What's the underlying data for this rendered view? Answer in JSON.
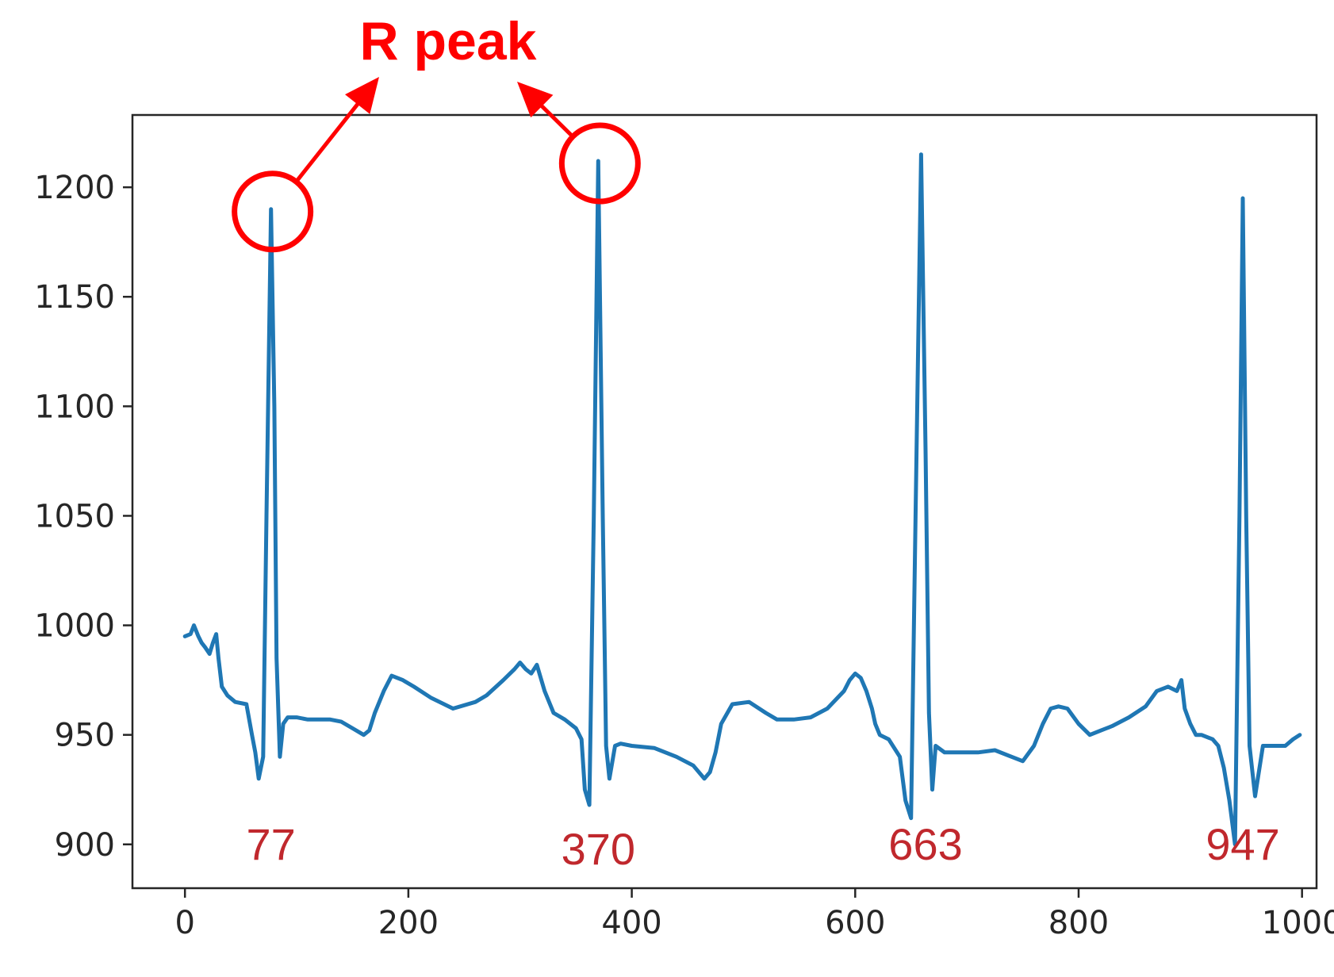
{
  "chart_data": {
    "type": "line",
    "title": "",
    "xlabel": "",
    "ylabel": "",
    "xlim": [
      -47,
      1013
    ],
    "ylim": [
      880,
      1233
    ],
    "x_ticks": [
      0,
      200,
      400,
      600,
      800,
      1000
    ],
    "y_ticks": [
      900,
      950,
      1000,
      1050,
      1100,
      1150,
      1200
    ],
    "grid": false,
    "series": [
      {
        "color": "#1f77b4",
        "x": [
          0,
          5,
          8,
          12,
          15,
          18,
          22,
          25,
          28,
          30,
          33,
          38,
          45,
          55,
          60,
          63,
          66,
          70,
          73,
          77,
          80,
          82,
          85,
          88,
          92,
          100,
          110,
          120,
          130,
          140,
          150,
          160,
          165,
          170,
          178,
          185,
          195,
          205,
          220,
          240,
          260,
          270,
          285,
          295,
          300,
          305,
          310,
          315,
          322,
          330,
          340,
          350,
          355,
          358,
          362,
          366,
          370,
          374,
          377,
          380,
          385,
          390,
          400,
          420,
          440,
          455,
          465,
          470,
          475,
          480,
          490,
          505,
          520,
          530,
          545,
          560,
          575,
          590,
          595,
          600,
          605,
          610,
          615,
          618,
          622,
          630,
          640,
          645,
          650,
          654,
          659,
          663,
          666,
          669,
          672,
          680,
          695,
          710,
          725,
          740,
          750,
          760,
          768,
          775,
          782,
          790,
          800,
          810,
          820,
          830,
          845,
          860,
          870,
          880,
          888,
          892,
          895,
          900,
          905,
          910,
          920,
          925,
          930,
          935,
          940,
          944,
          947,
          950,
          953,
          958,
          965,
          975,
          985,
          992,
          998
        ],
        "y": [
          995,
          996,
          1000,
          995,
          992,
          990,
          987,
          992,
          996,
          985,
          972,
          968,
          965,
          964,
          950,
          942,
          930,
          940,
          1050,
          1190,
          1100,
          985,
          940,
          955,
          958,
          958,
          957,
          957,
          957,
          956,
          953,
          950,
          952,
          960,
          970,
          977,
          975,
          972,
          967,
          962,
          965,
          968,
          975,
          980,
          983,
          980,
          978,
          982,
          970,
          960,
          957,
          953,
          948,
          925,
          918,
          1050,
          1212,
          1050,
          945,
          930,
          945,
          946,
          945,
          944,
          940,
          936,
          930,
          933,
          942,
          955,
          964,
          965,
          960,
          957,
          957,
          958,
          962,
          970,
          975,
          978,
          976,
          970,
          962,
          955,
          950,
          948,
          940,
          920,
          912,
          1050,
          1215,
          1080,
          960,
          925,
          945,
          942,
          942,
          942,
          943,
          940,
          938,
          945,
          955,
          962,
          963,
          962,
          955,
          950,
          952,
          954,
          958,
          963,
          970,
          972,
          970,
          975,
          962,
          955,
          950,
          950,
          948,
          945,
          935,
          920,
          900,
          1050,
          1195,
          1050,
          945,
          922,
          945,
          945,
          945,
          948,
          950
        ]
      }
    ],
    "annotations": {
      "title_text": "R peak",
      "title_color": "#ff0000",
      "label_color": "#c0282d",
      "peaks": [
        {
          "label": "77",
          "x": 77,
          "y": 1190,
          "circled": true
        },
        {
          "label": "370",
          "x": 370,
          "y": 1212,
          "circled": true
        },
        {
          "label": "663",
          "x": 663,
          "y": 1215,
          "circled": false
        },
        {
          "label": "947",
          "x": 947,
          "y": 1195,
          "circled": false
        }
      ]
    }
  }
}
